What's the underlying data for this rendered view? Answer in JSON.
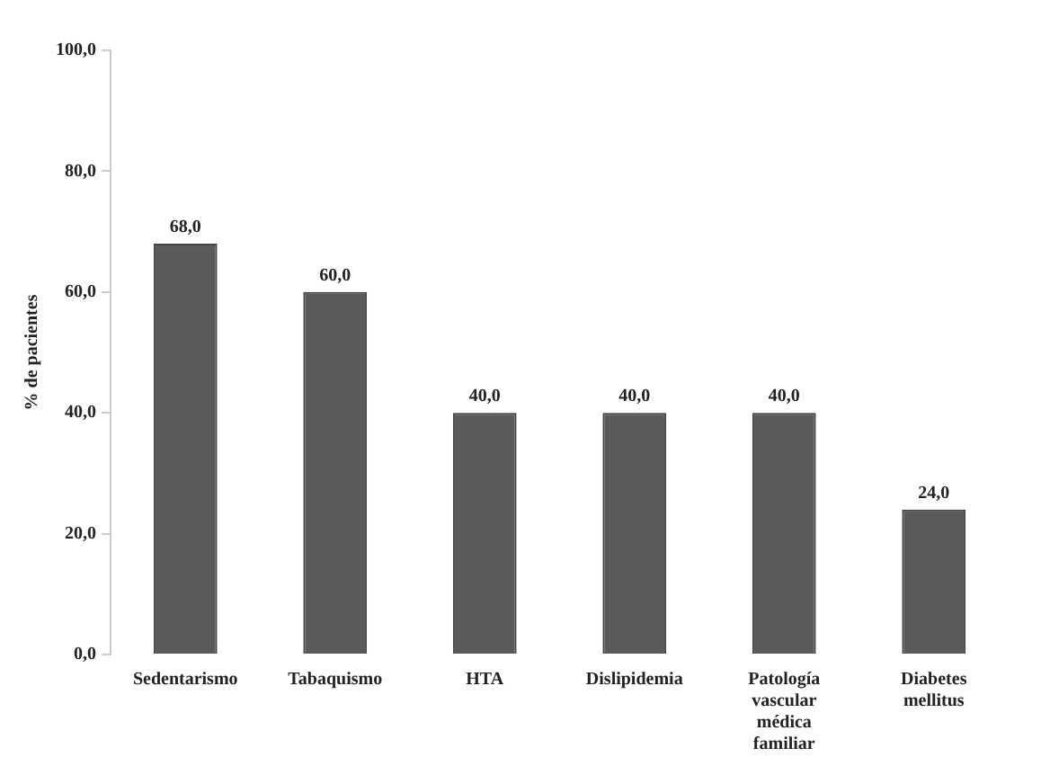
{
  "chart_data": {
    "type": "bar",
    "ylabel": "% de pacientes",
    "categories": [
      "Sedentarismo",
      "Tabaquismo",
      "HTA",
      "Dislipidemia",
      "Patología vascular médica familiar",
      "Diabetes mellitus"
    ],
    "values": [
      68.0,
      60.0,
      40.0,
      40.0,
      40.0,
      24.0
    ],
    "value_labels": [
      "68,0",
      "60,0",
      "40,0",
      "40,0",
      "40,0",
      "24,0"
    ],
    "color": "#5a5a5a",
    "ylim": [
      0,
      100
    ],
    "yticks": [
      {
        "value": 0,
        "label": "0,0"
      },
      {
        "value": 20,
        "label": "20,0"
      },
      {
        "value": 40,
        "label": "40,0"
      },
      {
        "value": 60,
        "label": "60,0"
      },
      {
        "value": 80,
        "label": "80,0"
      },
      {
        "value": 100,
        "label": "100,0"
      }
    ],
    "grid": false,
    "legend": false
  }
}
